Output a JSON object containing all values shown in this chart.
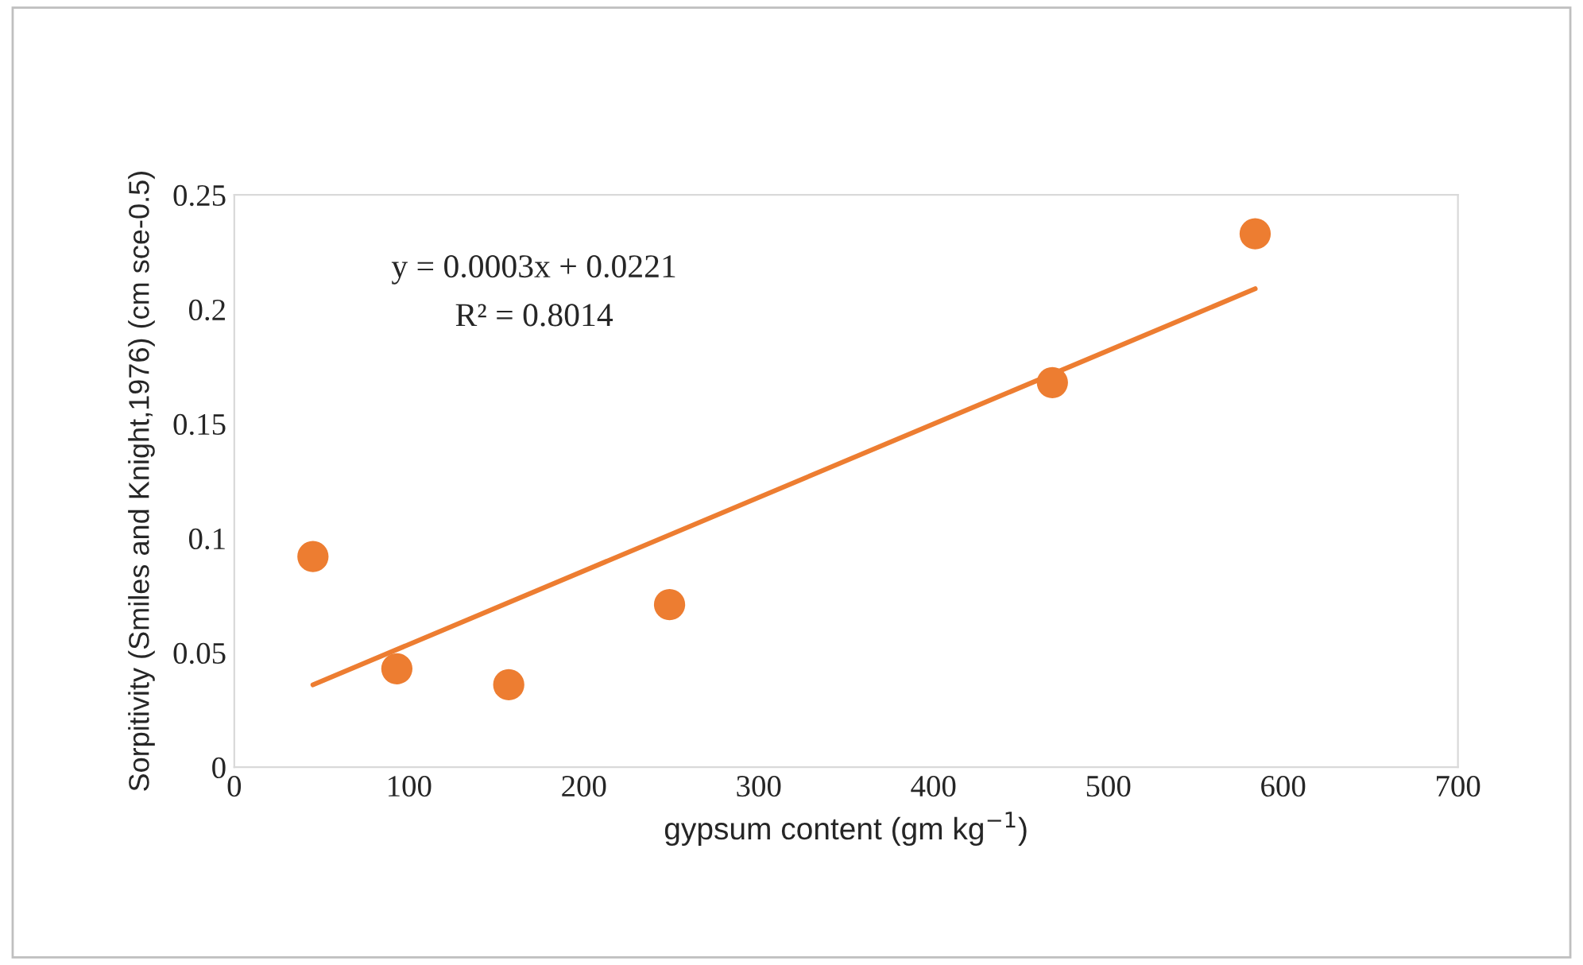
{
  "chart_data": {
    "type": "scatter",
    "xlabel": "gypsum content (gm kg$^{−1}$)",
    "ylabel": "Sorpitivity (Smiles and Knight,1976) (cm sce-0.5)",
    "annotations": [
      "y = 0.0003x + 0.0221",
      "R² = 0.8014"
    ],
    "series": [
      {
        "color": "#ed7d31",
        "x": [
          45,
          93,
          157,
          249,
          468,
          584
        ],
        "values": [
          0.092,
          0.043,
          0.036,
          0.071,
          0.168,
          0.233
        ],
        "marker": "circle"
      },
      {
        "type": "line",
        "color": "#ed7d31",
        "x": [
          45,
          584
        ],
        "values": [
          0.036,
          0.209
        ],
        "marker": "none",
        "line_style": "solid"
      }
    ],
    "xlim": [
      0,
      700
    ],
    "xticks": [
      0,
      100,
      200,
      300,
      400,
      500,
      600,
      700
    ],
    "ylim": [
      0,
      0.25
    ],
    "yticks": [
      0,
      0.05,
      0.1,
      0.15,
      0.2,
      0.25
    ],
    "grid": false,
    "legend": false
  }
}
